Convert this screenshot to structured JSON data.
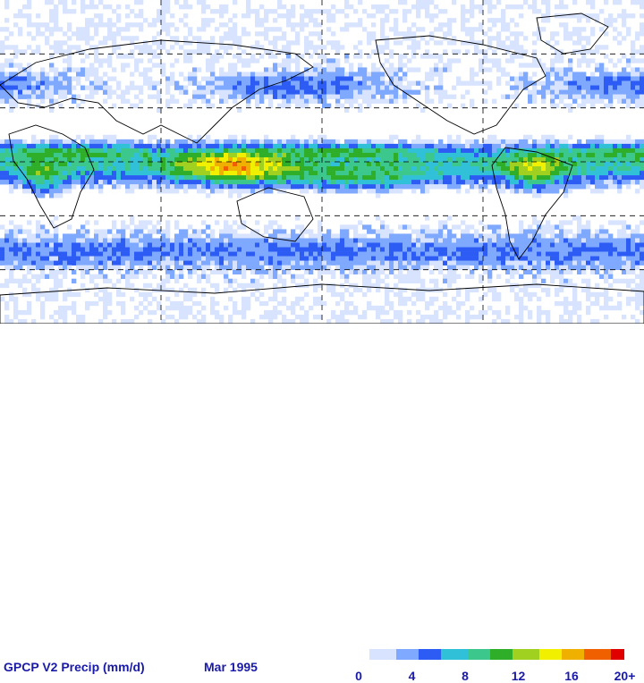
{
  "legend": {
    "title": "GPCP V2 Precip (mm/d)",
    "date": "Mar  1995",
    "ticks": [
      "0",
      "4",
      "8",
      "12",
      "16",
      "20+"
    ],
    "range": [
      0,
      20
    ],
    "colors": [
      "#ffffff",
      "#d8e4ff",
      "#7fa8ff",
      "#2c5cf4",
      "#30c0d8",
      "#3cc88c",
      "#2fae2a",
      "#a0d020",
      "#f0f000",
      "#f0b000",
      "#f06000",
      "#e00000"
    ]
  },
  "map": {
    "projection": "equirectangular",
    "lon_range": [
      0,
      360
    ],
    "lat_range": [
      -90,
      90
    ],
    "grid_lines_lat": [
      -60,
      -30,
      0,
      30,
      60
    ],
    "grid_lines_lon": [
      90,
      180,
      270
    ]
  }
}
